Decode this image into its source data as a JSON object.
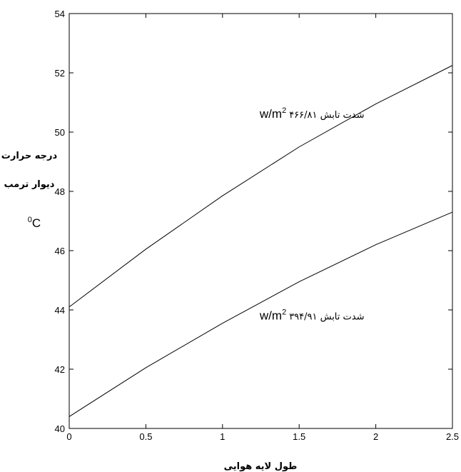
{
  "chart_data": {
    "type": "line",
    "xlabel": "طول لایه هوایی",
    "ylabel_lines": [
      "درجه حرارت",
      "دیوار ترمب"
    ],
    "ylabel_unit": "0C",
    "xlim": [
      0,
      2.5
    ],
    "ylim": [
      40,
      54
    ],
    "x_ticks": [
      0,
      0.5,
      1,
      1.5,
      2,
      2.5
    ],
    "x_tick_labels": [
      "0",
      "0.5",
      "1",
      "1.5",
      "2",
      "2.5"
    ],
    "y_ticks": [
      40,
      42,
      44,
      46,
      48,
      50,
      52,
      54
    ],
    "y_tick_labels": [
      "40",
      "42",
      "44",
      "46",
      "48",
      "50",
      "52",
      "54"
    ],
    "grid": false,
    "x": [
      0,
      0.5,
      1,
      1.5,
      2,
      2.5
    ],
    "series": [
      {
        "values": [
          44.1,
          46.05,
          47.85,
          49.5,
          50.95,
          52.25
        ],
        "annotation": {
          "label": "شدت تابش ۴۶۶/۸۱",
          "unit": "w/m2",
          "at_x": 1.5,
          "at_y": 50.6
        }
      },
      {
        "values": [
          40.4,
          42.05,
          43.55,
          44.95,
          46.2,
          47.3
        ],
        "annotation": {
          "label": "شدت تابش ۳۹۴/۹۱",
          "unit": "w/m2",
          "at_x": 1.5,
          "at_y": 43.8
        }
      }
    ],
    "colors": {
      "line": "#000000",
      "axis": "#000000"
    }
  }
}
